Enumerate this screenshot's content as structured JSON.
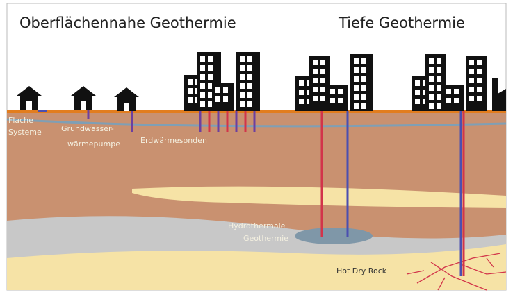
{
  "header": {
    "left_title": "Oberflächennahe Geothermie",
    "right_title": "Tiefe Geothermie"
  },
  "labels": [
    {
      "lines": [
        "Flache",
        "Systeme"
      ]
    },
    {
      "lines": [
        "Grundwasser-",
        "wärmepumpe"
      ]
    },
    {
      "lines": [
        "Erdwärmesonden"
      ]
    },
    {
      "lines": [
        "Hydrothermale",
        "Geothermie"
      ]
    },
    {
      "lines": [
        "Hot Dry Rock"
      ]
    }
  ]
}
